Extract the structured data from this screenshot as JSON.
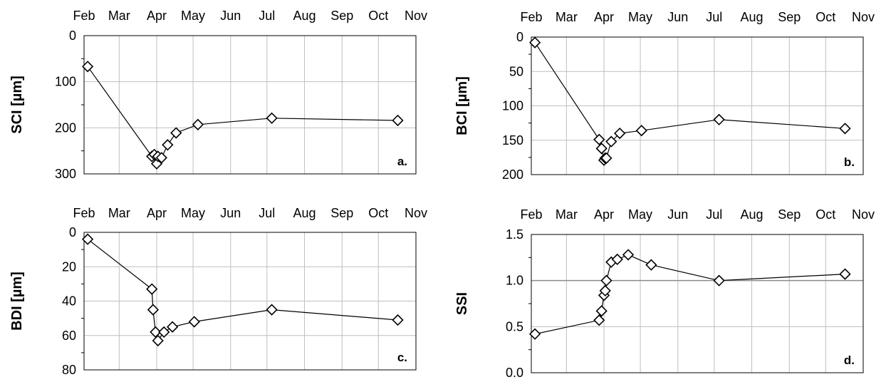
{
  "chart_data": [
    {
      "type": "scatter",
      "panel": "a.",
      "xlabel": "",
      "ylabel": "SCI [µm]",
      "x_ticks": [
        "Feb",
        "Mar",
        "Apr",
        "May",
        "Jun",
        "Jul",
        "Aug",
        "Sep",
        "Oct",
        "Nov"
      ],
      "y_ticks": [
        "0",
        "100",
        "200",
        "300"
      ],
      "ylim": [
        0,
        300
      ],
      "y_inverted": true,
      "grid": true,
      "series": [
        {
          "x": [
            "Feb 04",
            "Mar 28",
            "Mar 30",
            "Apr 01",
            "Apr 02",
            "Apr 05",
            "Apr 10",
            "Apr 17",
            "May 05",
            "Jul 05",
            "Oct 17"
          ],
          "y": [
            67,
            262,
            258,
            278,
            262,
            265,
            237,
            211,
            193,
            179,
            184
          ]
        }
      ]
    },
    {
      "type": "scatter",
      "panel": "b.",
      "xlabel": "",
      "ylabel": "BCI [µm]",
      "x_ticks": [
        "Feb",
        "Mar",
        "Apr",
        "May",
        "Jun",
        "Jul",
        "Aug",
        "Sep",
        "Oct",
        "Nov"
      ],
      "y_ticks": [
        "0",
        "50",
        "100",
        "150",
        "200"
      ],
      "ylim": [
        0,
        200
      ],
      "y_inverted": true,
      "grid": true,
      "series": [
        {
          "x": [
            "Feb 04",
            "Mar 28",
            "Mar 30",
            "Apr 01",
            "Apr 02",
            "Apr 03",
            "Apr 07",
            "Apr 14",
            "May 02",
            "Jul 05",
            "Oct 17"
          ],
          "y": [
            8,
            149,
            162,
            179,
            176,
            176,
            152,
            140,
            136,
            120,
            133
          ]
        }
      ]
    },
    {
      "type": "scatter",
      "panel": "c.",
      "xlabel": "",
      "ylabel": "BDI [µm]",
      "x_ticks": [
        "Feb",
        "Mar",
        "Apr",
        "May",
        "Jun",
        "Jul",
        "Aug",
        "Sep",
        "Oct",
        "Nov"
      ],
      "y_ticks": [
        "0",
        "20",
        "40",
        "60",
        "80"
      ],
      "ylim": [
        0,
        80
      ],
      "y_inverted": true,
      "grid": true,
      "series": [
        {
          "x": [
            "Feb 04",
            "Mar 28",
            "Mar 29",
            "Mar 31",
            "Apr 02",
            "Apr 07",
            "Apr 14",
            "May 02",
            "Jul 05",
            "Oct 17"
          ],
          "y": [
            4,
            33,
            45,
            58,
            63,
            58,
            55,
            52,
            45,
            51
          ]
        }
      ]
    },
    {
      "type": "scatter",
      "panel": "d.",
      "xlabel": "",
      "ylabel": "SSI",
      "x_ticks": [
        "Feb",
        "Mar",
        "Apr",
        "May",
        "Jun",
        "Jul",
        "Aug",
        "Sep",
        "Oct",
        "Nov"
      ],
      "y_ticks": [
        "0.0",
        "0.5",
        "1.0",
        "1.5"
      ],
      "ylim": [
        0,
        1.5
      ],
      "y_inverted": false,
      "grid": true,
      "reference_line": 1.0,
      "series": [
        {
          "x": [
            "Feb 04",
            "Mar 28",
            "Mar 30",
            "Apr 01",
            "Apr 02",
            "Apr 03",
            "Apr 07",
            "Apr 12",
            "Apr 21",
            "May 10",
            "Jul 05",
            "Oct 17"
          ],
          "y": [
            0.42,
            0.57,
            0.67,
            0.84,
            0.89,
            1.0,
            1.2,
            1.23,
            1.28,
            1.17,
            1.0,
            1.07
          ]
        }
      ]
    }
  ]
}
